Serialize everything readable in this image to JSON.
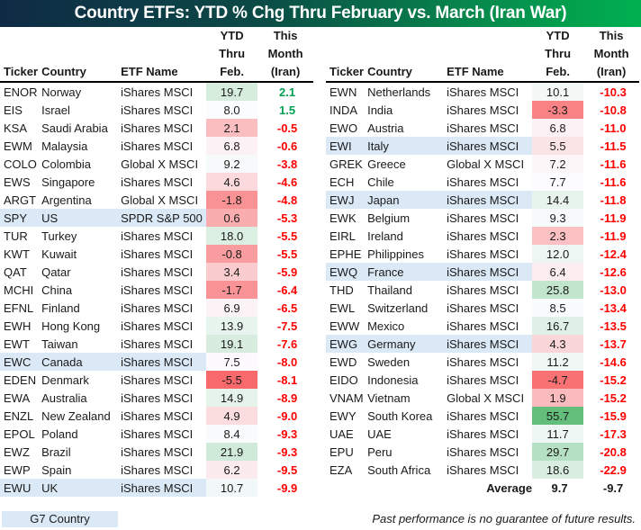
{
  "title": "Country ETFs: YTD % Chg Thru February vs. March (Iran War)",
  "headers": {
    "ticker": "Ticker",
    "country": "Country",
    "etf_name": "ETF Name",
    "ytd": [
      "YTD",
      "Thru",
      "Feb."
    ],
    "month": [
      "This",
      "Month",
      "(Iran)"
    ]
  },
  "colors": {
    "g7_highlight": "#dbe8f6",
    "negative_text": "#ff0000",
    "positive_text": "#00a050",
    "heat_low": "#f8696b",
    "heat_mid": "#fcfcff",
    "heat_high": "#63be7b"
  },
  "left_table": [
    {
      "ticker": "ENOR",
      "country": "Norway",
      "etf": "iShares MSCI",
      "ytd": "19.7",
      "month": "2.1",
      "g7": false
    },
    {
      "ticker": "EIS",
      "country": "Israel",
      "etf": "iShares MSCI",
      "ytd": "8.0",
      "month": "1.5",
      "g7": false
    },
    {
      "ticker": "KSA",
      "country": "Saudi Arabia",
      "etf": "iShares MSCI",
      "ytd": "2.1",
      "month": "-0.5",
      "g7": false
    },
    {
      "ticker": "EWM",
      "country": "Malaysia",
      "etf": "iShares MSCI",
      "ytd": "6.8",
      "month": "-0.6",
      "g7": false
    },
    {
      "ticker": "COLO",
      "country": "Colombia",
      "etf": "Global X MSCI",
      "ytd": "9.2",
      "month": "-3.8",
      "g7": false
    },
    {
      "ticker": "EWS",
      "country": "Singapore",
      "etf": "iShares MSCI",
      "ytd": "4.6",
      "month": "-4.6",
      "g7": false
    },
    {
      "ticker": "ARGT",
      "country": "Argentina",
      "etf": "Global X MSCI",
      "ytd": "-1.8",
      "month": "-4.8",
      "g7": false
    },
    {
      "ticker": "SPY",
      "country": "US",
      "etf": "SPDR S&P 500",
      "ytd": "0.6",
      "month": "-5.3",
      "g7": true
    },
    {
      "ticker": "TUR",
      "country": "Turkey",
      "etf": "iShares MSCI",
      "ytd": "18.0",
      "month": "-5.5",
      "g7": false
    },
    {
      "ticker": "KWT",
      "country": "Kuwait",
      "etf": "iShares MSCI",
      "ytd": "-0.8",
      "month": "-5.5",
      "g7": false
    },
    {
      "ticker": "QAT",
      "country": "Qatar",
      "etf": "iShares MSCI",
      "ytd": "3.4",
      "month": "-5.9",
      "g7": false
    },
    {
      "ticker": "MCHI",
      "country": "China",
      "etf": "iShares MSCI",
      "ytd": "-1.7",
      "month": "-6.4",
      "g7": false
    },
    {
      "ticker": "EFNL",
      "country": "Finland",
      "etf": "iShares MSCI",
      "ytd": "6.9",
      "month": "-6.5",
      "g7": false
    },
    {
      "ticker": "EWH",
      "country": "Hong Kong",
      "etf": "iShares MSCI",
      "ytd": "13.9",
      "month": "-7.5",
      "g7": false
    },
    {
      "ticker": "EWT",
      "country": "Taiwan",
      "etf": "iShares MSCI",
      "ytd": "19.1",
      "month": "-7.6",
      "g7": false
    },
    {
      "ticker": "EWC",
      "country": "Canada",
      "etf": "iShares MSCI",
      "ytd": "7.5",
      "month": "-8.0",
      "g7": true
    },
    {
      "ticker": "EDEN",
      "country": "Denmark",
      "etf": "iShares MSCI",
      "ytd": "-5.5",
      "month": "-8.1",
      "g7": false
    },
    {
      "ticker": "EWA",
      "country": "Australia",
      "etf": "iShares MSCI",
      "ytd": "14.9",
      "month": "-8.9",
      "g7": false
    },
    {
      "ticker": "ENZL",
      "country": "New Zealand",
      "etf": "iShares MSCI",
      "ytd": "4.9",
      "month": "-9.0",
      "g7": false
    },
    {
      "ticker": "EPOL",
      "country": "Poland",
      "etf": "iShares MSCI",
      "ytd": "8.4",
      "month": "-9.3",
      "g7": false
    },
    {
      "ticker": "EWZ",
      "country": "Brazil",
      "etf": "iShares MSCI",
      "ytd": "21.9",
      "month": "-9.3",
      "g7": false
    },
    {
      "ticker": "EWP",
      "country": "Spain",
      "etf": "iShares MSCI",
      "ytd": "6.2",
      "month": "-9.5",
      "g7": false
    },
    {
      "ticker": "EWU",
      "country": "UK",
      "etf": "iShares MSCI",
      "ytd": "10.7",
      "month": "-9.9",
      "g7": true
    }
  ],
  "right_table": [
    {
      "ticker": "EWN",
      "country": "Netherlands",
      "etf": "iShares MSCI",
      "ytd": "10.1",
      "month": "-10.3",
      "g7": false
    },
    {
      "ticker": "INDA",
      "country": "India",
      "etf": "iShares MSCI",
      "ytd": "-3.3",
      "month": "-10.8",
      "g7": false
    },
    {
      "ticker": "EWO",
      "country": "Austria",
      "etf": "iShares MSCI",
      "ytd": "6.8",
      "month": "-11.0",
      "g7": false
    },
    {
      "ticker": "EWI",
      "country": "Italy",
      "etf": "iShares MSCI",
      "ytd": "5.5",
      "month": "-11.5",
      "g7": true
    },
    {
      "ticker": "GREK",
      "country": "Greece",
      "etf": "Global X MSCI",
      "ytd": "7.2",
      "month": "-11.6",
      "g7": false
    },
    {
      "ticker": "ECH",
      "country": "Chile",
      "etf": "iShares MSCI",
      "ytd": "7.7",
      "month": "-11.6",
      "g7": false
    },
    {
      "ticker": "EWJ",
      "country": "Japan",
      "etf": "iShares MSCI",
      "ytd": "14.4",
      "month": "-11.8",
      "g7": true
    },
    {
      "ticker": "EWK",
      "country": "Belgium",
      "etf": "iShares MSCI",
      "ytd": "9.3",
      "month": "-11.9",
      "g7": false
    },
    {
      "ticker": "EIRL",
      "country": "Ireland",
      "etf": "iShares MSCI",
      "ytd": "2.3",
      "month": "-11.9",
      "g7": false
    },
    {
      "ticker": "EPHE",
      "country": "Philippines",
      "etf": "iShares MSCI",
      "ytd": "12.0",
      "month": "-12.4",
      "g7": false
    },
    {
      "ticker": "EWQ",
      "country": "France",
      "etf": "iShares MSCI",
      "ytd": "6.4",
      "month": "-12.6",
      "g7": true
    },
    {
      "ticker": "THD",
      "country": "Thailand",
      "etf": "iShares MSCI",
      "ytd": "25.8",
      "month": "-13.0",
      "g7": false
    },
    {
      "ticker": "EWL",
      "country": "Switzerland",
      "etf": "iShares MSCI",
      "ytd": "8.5",
      "month": "-13.4",
      "g7": false
    },
    {
      "ticker": "EWW",
      "country": "Mexico",
      "etf": "iShares MSCI",
      "ytd": "16.7",
      "month": "-13.5",
      "g7": false
    },
    {
      "ticker": "EWG",
      "country": "Germany",
      "etf": "iShares MSCI",
      "ytd": "4.3",
      "month": "-13.7",
      "g7": true
    },
    {
      "ticker": "EWD",
      "country": "Sweden",
      "etf": "iShares MSCI",
      "ytd": "11.2",
      "month": "-14.6",
      "g7": false
    },
    {
      "ticker": "EIDO",
      "country": "Indonesia",
      "etf": "iShares MSCI",
      "ytd": "-4.7",
      "month": "-15.2",
      "g7": false
    },
    {
      "ticker": "VNAM",
      "country": "Vietnam",
      "etf": "Global X MSCI",
      "ytd": "1.9",
      "month": "-15.2",
      "g7": false
    },
    {
      "ticker": "EWY",
      "country": "South Korea",
      "etf": "iShares MSCI",
      "ytd": "55.7",
      "month": "-15.9",
      "g7": false
    },
    {
      "ticker": "UAE",
      "country": "UAE",
      "etf": "iShares MSCI",
      "ytd": "11.7",
      "month": "-17.3",
      "g7": false
    },
    {
      "ticker": "EPU",
      "country": "Peru",
      "etf": "iShares MSCI",
      "ytd": "29.7",
      "month": "-20.8",
      "g7": false
    },
    {
      "ticker": "EZA",
      "country": "South Africa",
      "etf": "iShares MSCI",
      "ytd": "18.6",
      "month": "-22.9",
      "g7": false
    }
  ],
  "average": {
    "label": "Average",
    "ytd": "9.7",
    "month": "-9.7"
  },
  "legend": {
    "g7_label": "G7 Country"
  },
  "disclaimer": "Past performance is no guarantee of future results."
}
